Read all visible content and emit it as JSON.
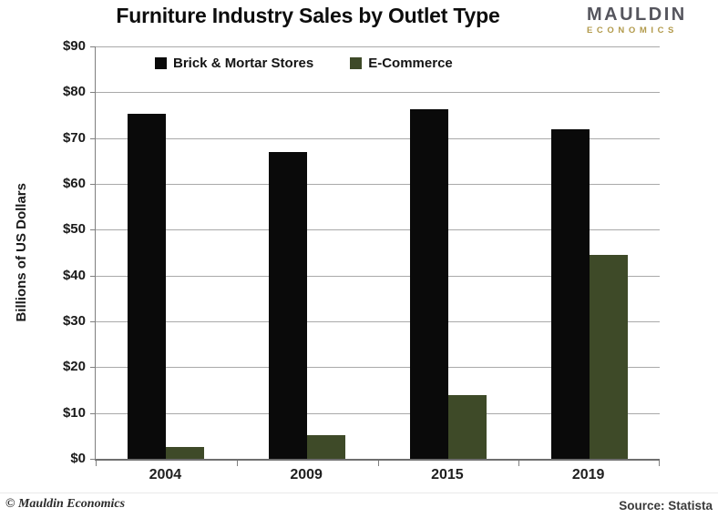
{
  "title": "Furniture Industry Sales by Outlet Type",
  "logo": {
    "line1": "MAULDIN",
    "line2": "ECONOMICS"
  },
  "footer": {
    "copyright": "© Mauldin Economics",
    "source": "Source: Statista"
  },
  "colors": {
    "brick_mortar": "#0a0a0a",
    "ecommerce": "#3e4a28",
    "gridline": "#a9a9a9",
    "axis": "#7f7f7f",
    "logo_gray": "#55555d",
    "logo_gold": "#b29a4b"
  },
  "chart_data": {
    "type": "bar",
    "title": "Furniture Industry Sales by Outlet Type",
    "categories": [
      "2004",
      "2009",
      "2015",
      "2019"
    ],
    "series": [
      {
        "name": "Brick & Mortar Stores",
        "color": "#0a0a0a",
        "values": [
          75.4,
          67.0,
          76.3,
          71.9
        ]
      },
      {
        "name": "E-Commerce",
        "color": "#3e4a28",
        "values": [
          2.5,
          5.2,
          14.0,
          44.5
        ]
      }
    ],
    "xlabel": "",
    "ylabel": "Billions of US Dollars",
    "ylim": [
      0,
      90
    ],
    "ytick_step": 10,
    "ytick_prefix": "$",
    "grid": true,
    "legend_position": "top-inside"
  }
}
